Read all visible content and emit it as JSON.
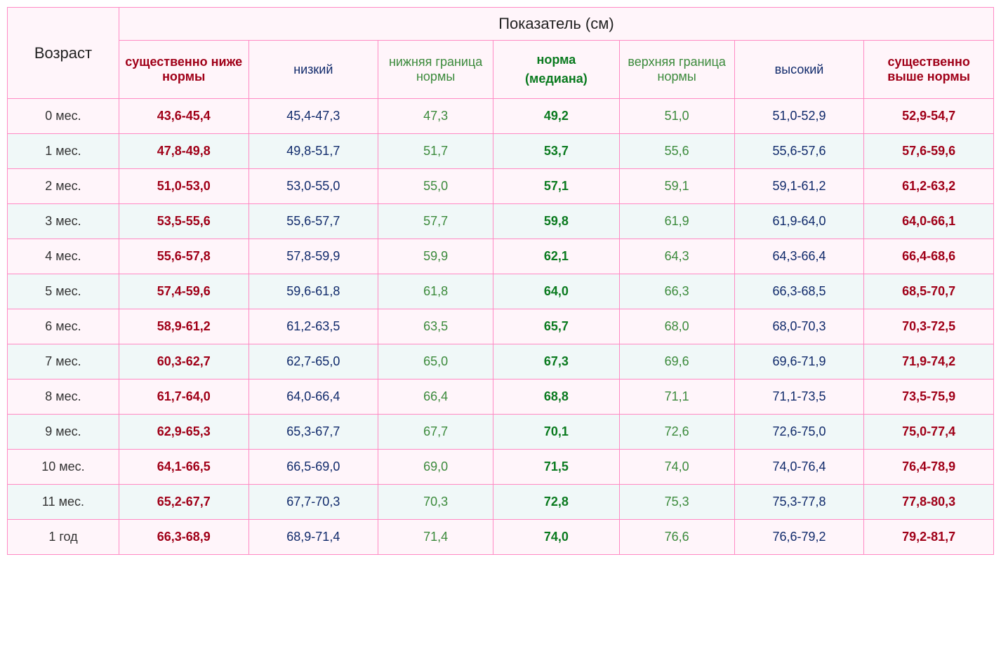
{
  "header": {
    "age_label": "Возраст",
    "metric_label": "Показатель (см)",
    "columns": [
      "существенно ниже нормы",
      "низкий",
      "нижняя граница нормы",
      "норма",
      "(медиана)",
      "верхняя граница нормы",
      "высокий",
      "существенно выше нормы"
    ]
  },
  "colors": {
    "border": "#ff8ac4",
    "bg_odd": "#fff5fa",
    "bg_even": "#f0f8f8",
    "red": "#a00018",
    "navy": "#102a6b",
    "olive": "#3b8a3b",
    "green": "#0a7a1f",
    "text": "#333333"
  },
  "rows": [
    {
      "age": "0 мес.",
      "v": [
        "43,6-45,4",
        "45,4-47,3",
        "47,3",
        "49,2",
        "51,0",
        "51,0-52,9",
        "52,9-54,7"
      ]
    },
    {
      "age": "1 мес.",
      "v": [
        "47,8-49,8",
        "49,8-51,7",
        "51,7",
        "53,7",
        "55,6",
        "55,6-57,6",
        "57,6-59,6"
      ]
    },
    {
      "age": "2 мес.",
      "v": [
        "51,0-53,0",
        "53,0-55,0",
        "55,0",
        "57,1",
        "59,1",
        "59,1-61,2",
        "61,2-63,2"
      ]
    },
    {
      "age": "3 мес.",
      "v": [
        "53,5-55,6",
        "55,6-57,7",
        "57,7",
        "59,8",
        "61,9",
        "61,9-64,0",
        "64,0-66,1"
      ]
    },
    {
      "age": "4 мес.",
      "v": [
        "55,6-57,8",
        "57,8-59,9",
        "59,9",
        "62,1",
        "64,3",
        "64,3-66,4",
        "66,4-68,6"
      ]
    },
    {
      "age": "5 мес.",
      "v": [
        "57,4-59,6",
        "59,6-61,8",
        "61,8",
        "64,0",
        "66,3",
        "66,3-68,5",
        "68,5-70,7"
      ]
    },
    {
      "age": "6 мес.",
      "v": [
        "58,9-61,2",
        "61,2-63,5",
        "63,5",
        "65,7",
        "68,0",
        "68,0-70,3",
        "70,3-72,5"
      ]
    },
    {
      "age": "7 мес.",
      "v": [
        "60,3-62,7",
        "62,7-65,0",
        "65,0",
        "67,3",
        "69,6",
        "69,6-71,9",
        "71,9-74,2"
      ]
    },
    {
      "age": "8 мес.",
      "v": [
        "61,7-64,0",
        "64,0-66,4",
        "66,4",
        "68,8",
        "71,1",
        "71,1-73,5",
        "73,5-75,9"
      ]
    },
    {
      "age": "9 мес.",
      "v": [
        "62,9-65,3",
        "65,3-67,7",
        "67,7",
        "70,1",
        "72,6",
        "72,6-75,0",
        "75,0-77,4"
      ]
    },
    {
      "age": "10 мес.",
      "v": [
        "64,1-66,5",
        "66,5-69,0",
        "69,0",
        "71,5",
        "74,0",
        "74,0-76,4",
        "76,4-78,9"
      ]
    },
    {
      "age": "11 мес.",
      "v": [
        "65,2-67,7",
        "67,7-70,3",
        "70,3",
        "72,8",
        "75,3",
        "75,3-77,8",
        "77,8-80,3"
      ]
    },
    {
      "age": "1 год",
      "v": [
        "66,3-68,9",
        "68,9-71,4",
        "71,4",
        "74,0",
        "76,6",
        "76,6-79,2",
        "79,2-81,7"
      ]
    }
  ]
}
